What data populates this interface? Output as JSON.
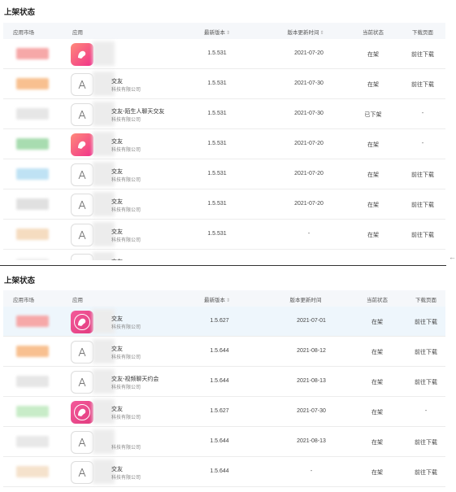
{
  "panels": [
    {
      "title": "上架状态",
      "columns": [
        "应用市场",
        "应用",
        "最新版本",
        "版本更新时间",
        "当前状态",
        "下载页面"
      ],
      "rows": [
        {
          "market_color": "#f6a8a8",
          "icon": "brand-a",
          "app_name": "",
          "company": "",
          "version": "1.5.531",
          "updated": "2021-07-20",
          "status": "在架",
          "download": "前往下载"
        },
        {
          "market_color": "#f8c090",
          "icon": "app-store",
          "app_name": "交友",
          "company": "科技有限公司",
          "version": "1.5.531",
          "updated": "2021-07-30",
          "status": "在架",
          "download": "前往下载"
        },
        {
          "market_color": "#e6e6e6",
          "icon": "app-store",
          "app_name": "交友-陌生人聊天交友",
          "company": "科技有限公司",
          "version": "1.5.531",
          "updated": "2021-07-30",
          "status": "已下架",
          "download": "-"
        },
        {
          "market_color": "#a8dcb0",
          "icon": "brand-a",
          "app_name": "交友",
          "company": "科技有限公司",
          "version": "1.5.531",
          "updated": "2021-07-20",
          "status": "在架",
          "download": "-"
        },
        {
          "market_color": "#bfe2f4",
          "icon": "app-store",
          "app_name": "交友",
          "company": "科技有限公司",
          "version": "1.5.531",
          "updated": "2021-07-20",
          "status": "在架",
          "download": "前往下载"
        },
        {
          "market_color": "#e0e0e0",
          "icon": "app-store",
          "app_name": "交友",
          "company": "科技有限公司",
          "version": "1.5.531",
          "updated": "2021-07-20",
          "status": "在架",
          "download": "前往下载"
        },
        {
          "market_color": "#f5dcc0",
          "icon": "app-store",
          "app_name": "交友",
          "company": "科技有限公司",
          "version": "1.5.531",
          "updated": "-",
          "status": "在架",
          "download": "前往下载"
        },
        {
          "market_color": "#eeeeee",
          "icon": "app-store",
          "app_name": "交友",
          "company": "",
          "version": "",
          "updated": "",
          "status": "",
          "download": ""
        }
      ]
    },
    {
      "title": "上架状态",
      "columns": [
        "应用市场",
        "应用",
        "最新版本",
        "版本更新时间",
        "当前状态",
        "下载页面"
      ],
      "rows": [
        {
          "market_color": "#f6a8a8",
          "icon": "brand-b",
          "app_name": "交友",
          "company": "科技有限公司",
          "version": "1.5.627",
          "updated": "2021-07-01",
          "status": "在架",
          "download": "前往下载"
        },
        {
          "market_color": "#f8c090",
          "icon": "app-store",
          "app_name": "交友",
          "company": "科技有限公司",
          "version": "1.5.644",
          "updated": "2021-08-12",
          "status": "在架",
          "download": "前往下载"
        },
        {
          "market_color": "#e6e6e6",
          "icon": "app-store",
          "app_name": "交友-视频聊天约会",
          "company": "科技有限公司",
          "version": "1.5.644",
          "updated": "2021-08-13",
          "status": "在架",
          "download": "前往下载"
        },
        {
          "market_color": "#c8ecc8",
          "icon": "brand-b",
          "app_name": "交友",
          "company": "科技有限公司",
          "version": "1.5.627",
          "updated": "2021-07-30",
          "status": "在架",
          "download": "-"
        },
        {
          "market_color": "#e8e8e8",
          "icon": "app-store",
          "app_name": "",
          "company": "科技有限公司",
          "version": "1.5.644",
          "updated": "2021-08-13",
          "status": "在架",
          "download": "前往下载"
        },
        {
          "market_color": "#f5e2cc",
          "icon": "app-store",
          "app_name": "交友",
          "company": "科技有限公司",
          "version": "1.5.644",
          "updated": "-",
          "status": "在架",
          "download": "前往下载"
        }
      ]
    }
  ],
  "edge_arrow": "←"
}
